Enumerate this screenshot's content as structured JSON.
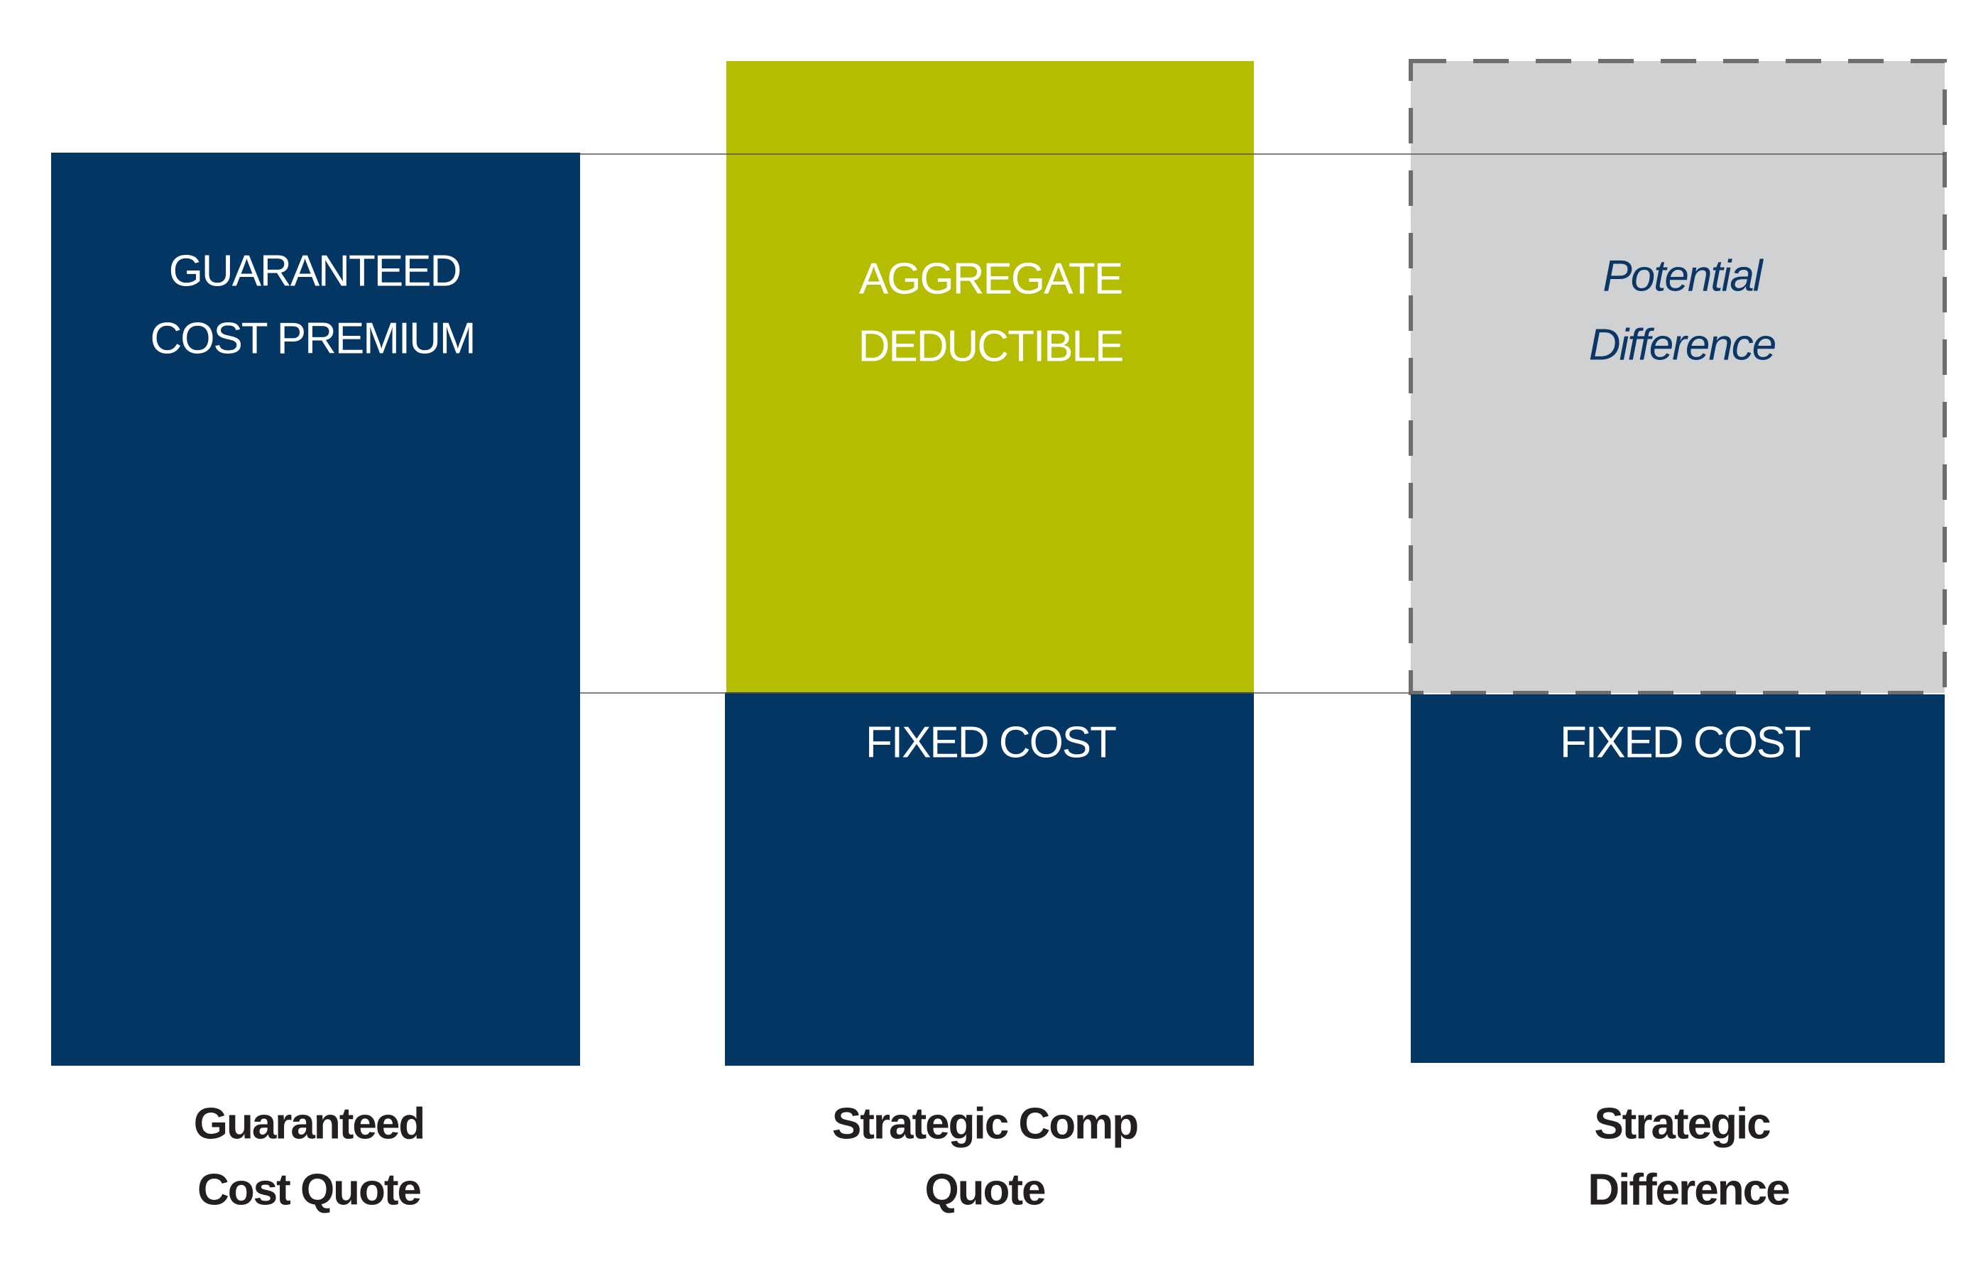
{
  "columns": [
    {
      "label": [
        "Guaranteed",
        "Cost Quote"
      ],
      "segments": [
        {
          "text": [
            "GUARANTEED",
            "COST PREMIUM"
          ]
        }
      ]
    },
    {
      "label": [
        "Strategic Comp",
        "Quote"
      ],
      "segments": [
        {
          "text": [
            "AGGREGATE",
            "DEDUCTIBLE"
          ]
        },
        {
          "text": [
            "FIXED COST"
          ]
        }
      ]
    },
    {
      "label": [
        "Strategic",
        "Difference"
      ],
      "segments": [
        {
          "text": [
            "Potential",
            "Difference"
          ]
        },
        {
          "text": [
            "FIXED COST"
          ]
        }
      ]
    }
  ]
}
